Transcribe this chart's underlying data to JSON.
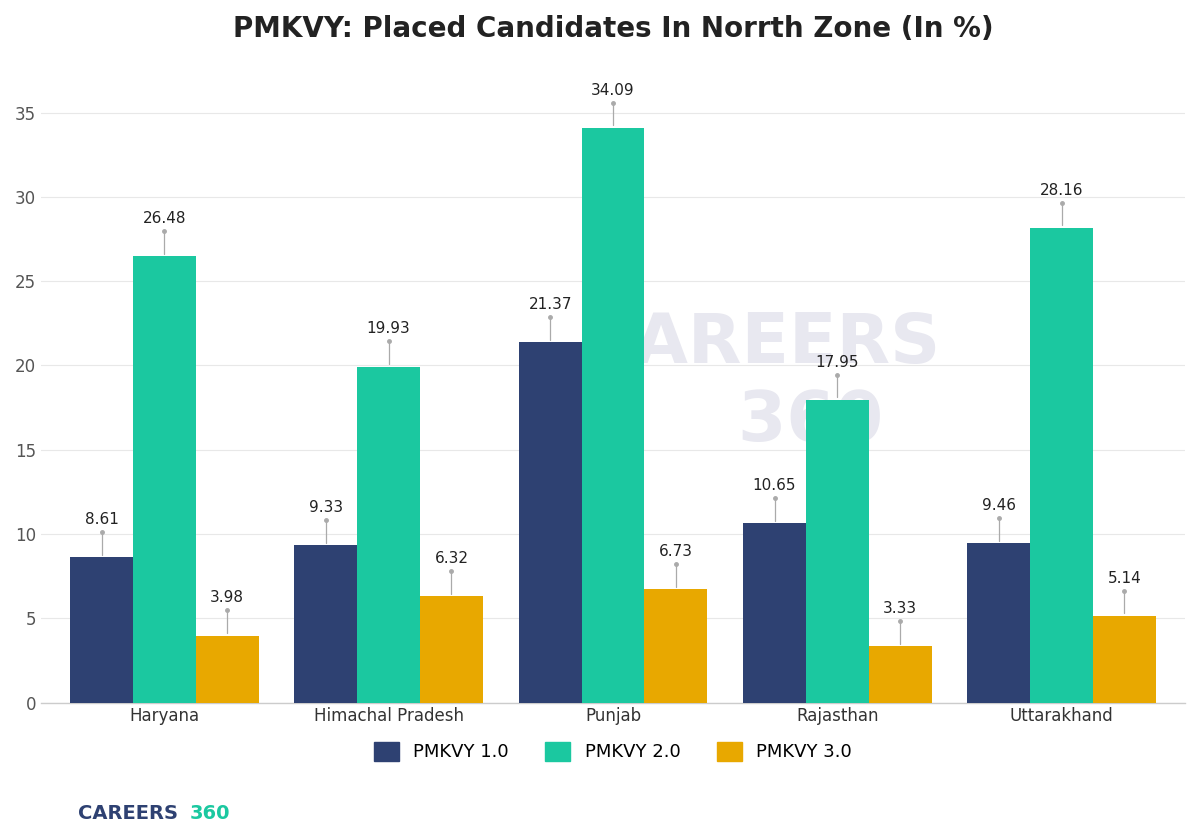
{
  "title": "PMKVY: Placed Candidates In Norrth Zone (In %)",
  "categories": [
    "Haryana",
    "Himachal Pradesh",
    "Punjab",
    "Rajasthan",
    "Uttarakhand"
  ],
  "series": {
    "PMKVY 1.0": [
      8.61,
      9.33,
      21.37,
      10.65,
      9.46
    ],
    "PMKVY 2.0": [
      26.48,
      19.93,
      34.09,
      17.95,
      28.16
    ],
    "PMKVY 3.0": [
      3.98,
      6.32,
      6.73,
      3.33,
      5.14
    ]
  },
  "colors": {
    "PMKVY 1.0": "#2E4172",
    "PMKVY 2.0": "#1BC8A0",
    "PMKVY 3.0": "#E8A800"
  },
  "ylim": [
    0,
    38
  ],
  "yticks": [
    0,
    5,
    10,
    15,
    20,
    25,
    30,
    35
  ],
  "bar_width": 0.28,
  "annotation_color": "#999999",
  "annotation_line_color": "#aaaaaa",
  "background_color": "#ffffff",
  "title_fontsize": 20,
  "tick_fontsize": 12,
  "label_fontsize": 11,
  "legend_fontsize": 13,
  "watermark_color": "#e8e8f0",
  "logo_careers_color": "#2E4172",
  "logo_360_color": "#1BC8A0"
}
